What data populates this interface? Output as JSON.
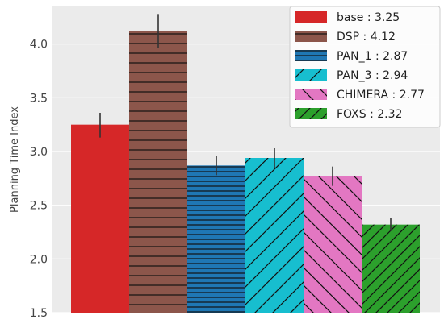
{
  "chart_data": {
    "type": "bar",
    "title": "",
    "xlabel": "",
    "ylabel": "Planning Time Index",
    "ylim": [
      1.5,
      4.35
    ],
    "yticks": [
      1.5,
      2.0,
      2.5,
      3.0,
      3.5,
      4.0
    ],
    "ytick_labels": [
      "1.5",
      "2.0",
      "2.5",
      "3.0",
      "3.5",
      "4.0"
    ],
    "grid": true,
    "legend_position": "top-right",
    "series": [
      {
        "name": "base",
        "legend": "base : 3.25",
        "value": 3.25,
        "error": [
          3.13,
          3.36
        ],
        "color": "#d62728",
        "hatch": "none"
      },
      {
        "name": "DSP",
        "legend": "DSP : 4.12",
        "value": 4.12,
        "error": [
          3.96,
          4.28
        ],
        "color": "#8c564b",
        "hatch": "horizontal"
      },
      {
        "name": "PAN_1",
        "legend": "PAN_1 : 2.87",
        "value": 2.87,
        "error": [
          2.78,
          2.96
        ],
        "color": "#1f77b4",
        "hatch": "horizontal-dense"
      },
      {
        "name": "PAN_3",
        "legend": "PAN_3 : 2.94",
        "value": 2.94,
        "error": [
          2.85,
          3.03
        ],
        "color": "#17becf",
        "hatch": "forward-diagonal"
      },
      {
        "name": "CHIMERA",
        "legend": "CHIMERA : 2.77",
        "value": 2.77,
        "error": [
          2.68,
          2.86
        ],
        "color": "#e377c2",
        "hatch": "back-diagonal"
      },
      {
        "name": "FOXS",
        "legend": "FOXS : 2.32",
        "value": 2.32,
        "error": [
          2.26,
          2.38
        ],
        "color": "#2ca02c",
        "hatch": "forward-diagonal-dense"
      }
    ]
  }
}
